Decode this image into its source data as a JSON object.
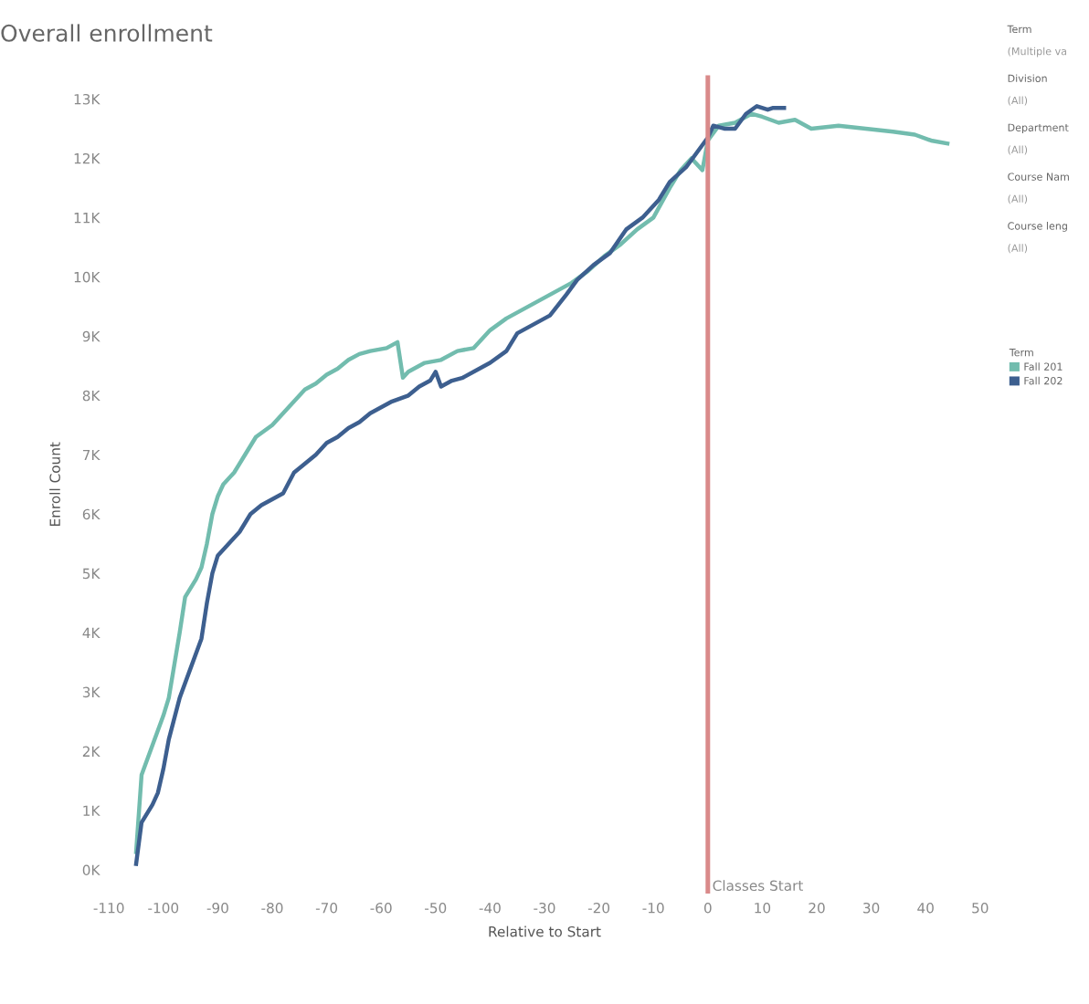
{
  "chart_data": {
    "type": "line",
    "title": "Overall enrollment",
    "xlabel": "Relative to Start",
    "ylabel": "Enroll Count",
    "legend_title": "Term",
    "legend": "right",
    "xlim": [
      -110,
      50
    ],
    "xticks": [
      -110,
      -100,
      -90,
      -80,
      -70,
      -60,
      -50,
      -40,
      -30,
      -20,
      -10,
      0,
      10,
      20,
      30,
      40,
      50
    ],
    "ylim": [
      -400,
      13400
    ],
    "yticks": [
      {
        "value": 0,
        "label": "0K"
      },
      {
        "value": 1000,
        "label": "1K"
      },
      {
        "value": 2000,
        "label": "2K"
      },
      {
        "value": 3000,
        "label": "3K"
      },
      {
        "value": 4000,
        "label": "4K"
      },
      {
        "value": 5000,
        "label": "5K"
      },
      {
        "value": 6000,
        "label": "6K"
      },
      {
        "value": 7000,
        "label": "7K"
      },
      {
        "value": 8000,
        "label": "8K"
      },
      {
        "value": 9000,
        "label": "9K"
      },
      {
        "value": 10000,
        "label": "10K"
      },
      {
        "value": 11000,
        "label": "11K"
      },
      {
        "value": 12000,
        "label": "12K"
      },
      {
        "value": 13000,
        "label": "13K"
      }
    ],
    "grid": false,
    "ref_lines": [
      {
        "axis": "x",
        "value": 0,
        "label": "Classes Start",
        "color": "#d98a8a"
      }
    ],
    "annotations": [
      "Term",
      "(Multiple va",
      "Division",
      "(All)",
      "Department",
      "(All)",
      "Course Nam",
      "(All)",
      "Course leng",
      "(All)"
    ],
    "series": [
      {
        "name": "Fall 201",
        "color": "#72bcae",
        "x": [
          -105,
          -104,
          -102,
          -100,
          -99,
          -97,
          -96,
          -94,
          -93,
          -92,
          -91,
          -90,
          -89,
          -87,
          -85,
          -83,
          -80,
          -78,
          -76,
          -74,
          -72,
          -70,
          -68,
          -66,
          -64,
          -62,
          -59,
          -57,
          -56,
          -55,
          -52,
          -49,
          -46,
          -43,
          -40,
          -37,
          -34,
          -31,
          -28,
          -25,
          -22,
          -19,
          -16,
          -13,
          -10,
          -7,
          -5,
          -3,
          -1,
          0,
          2,
          5,
          8,
          10,
          13,
          16,
          19,
          24,
          29,
          34,
          38,
          41,
          44
        ],
        "values": [
          300,
          1600,
          2100,
          2600,
          2900,
          4000,
          4600,
          4900,
          5100,
          5500,
          6000,
          6300,
          6500,
          6700,
          7000,
          7300,
          7500,
          7700,
          7900,
          8100,
          8200,
          8350,
          8450,
          8600,
          8700,
          8750,
          8800,
          8900,
          8300,
          8400,
          8550,
          8600,
          8750,
          8800,
          9100,
          9300,
          9450,
          9600,
          9750,
          9900,
          10100,
          10350,
          10550,
          10800,
          11000,
          11500,
          11800,
          12000,
          11800,
          12300,
          12550,
          12600,
          12750,
          12700,
          12600,
          12650,
          12500,
          12550,
          12500,
          12450,
          12400,
          12300,
          12250
        ]
      },
      {
        "name": "Fall 202",
        "color": "#3d5f8f",
        "x": [
          -105,
          -104,
          -102,
          -101,
          -100,
          -99,
          -97,
          -95,
          -93,
          -92,
          -91,
          -90,
          -88,
          -86,
          -84,
          -82,
          -80,
          -78,
          -76,
          -74,
          -72,
          -70,
          -68,
          -66,
          -64,
          -62,
          -60,
          -58,
          -55,
          -53,
          -51,
          -50,
          -49,
          -47,
          -45,
          -42,
          -40,
          -37,
          -35,
          -32,
          -29,
          -26,
          -24,
          -21,
          -18,
          -15,
          -12,
          -9,
          -7,
          -4,
          -2,
          0,
          1,
          3,
          5,
          7,
          9,
          11,
          12,
          14
        ],
        "values": [
          100,
          800,
          1100,
          1300,
          1700,
          2200,
          2900,
          3400,
          3900,
          4500,
          5000,
          5300,
          5500,
          5700,
          6000,
          6150,
          6250,
          6350,
          6700,
          6850,
          7000,
          7200,
          7300,
          7450,
          7550,
          7700,
          7800,
          7900,
          8000,
          8150,
          8250,
          8400,
          8150,
          8250,
          8300,
          8450,
          8550,
          8750,
          9050,
          9200,
          9350,
          9700,
          9950,
          10200,
          10400,
          10800,
          11000,
          11300,
          11600,
          11850,
          12100,
          12350,
          12550,
          12500,
          12500,
          12750,
          12880,
          12820,
          12850,
          12850
        ]
      }
    ]
  }
}
